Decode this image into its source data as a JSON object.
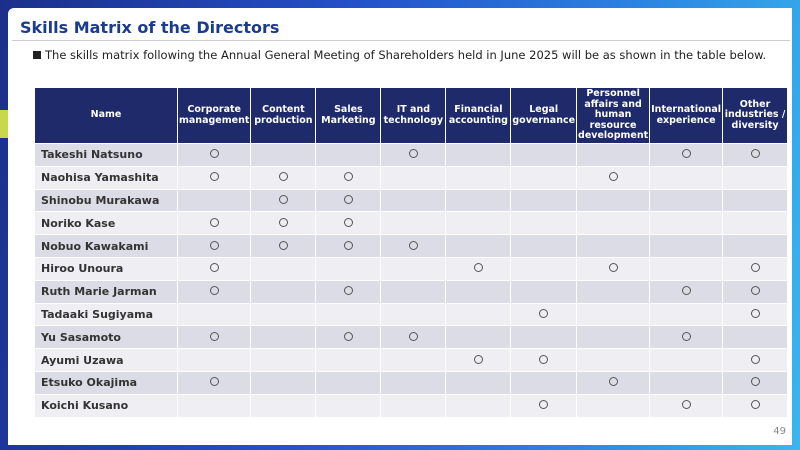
{
  "title": "Skills Matrix of the Directors",
  "subtitle": "The skills matrix following the Annual General Meeting of Shareholders held in June 2025 will be as shown in the table below.",
  "page_number": "49",
  "table": {
    "headers": [
      "Name",
      "Corporate management",
      "Content production",
      "Sales Marketing",
      "IT and technology",
      "Financial accounting",
      "Legal governance",
      "Personnel affairs and human resource development",
      "International experience",
      "Other industries / diversity"
    ],
    "rows": [
      {
        "name": "Takeshi Natsuno",
        "marks": [
          1,
          0,
          0,
          1,
          0,
          0,
          0,
          1,
          1
        ]
      },
      {
        "name": "Naohisa Yamashita",
        "marks": [
          1,
          1,
          1,
          0,
          0,
          0,
          1,
          0,
          0
        ]
      },
      {
        "name": "Shinobu Murakawa",
        "marks": [
          0,
          1,
          1,
          0,
          0,
          0,
          0,
          0,
          0
        ]
      },
      {
        "name": "Noriko Kase",
        "marks": [
          1,
          1,
          1,
          0,
          0,
          0,
          0,
          0,
          0
        ]
      },
      {
        "name": "Nobuo Kawakami",
        "marks": [
          1,
          1,
          1,
          1,
          0,
          0,
          0,
          0,
          0
        ]
      },
      {
        "name": "Hiroo Unoura",
        "marks": [
          1,
          0,
          0,
          0,
          1,
          0,
          1,
          0,
          1
        ]
      },
      {
        "name": "Ruth Marie Jarman",
        "marks": [
          1,
          0,
          1,
          0,
          0,
          0,
          0,
          1,
          1
        ]
      },
      {
        "name": "Tadaaki Sugiyama",
        "marks": [
          0,
          0,
          0,
          0,
          0,
          1,
          0,
          0,
          1
        ]
      },
      {
        "name": "Yu Sasamoto",
        "marks": [
          1,
          0,
          1,
          1,
          0,
          0,
          0,
          1,
          0
        ]
      },
      {
        "name": "Ayumi Uzawa",
        "marks": [
          0,
          0,
          0,
          0,
          1,
          1,
          0,
          0,
          1
        ]
      },
      {
        "name": "Etsuko Okajima",
        "marks": [
          1,
          0,
          0,
          0,
          0,
          0,
          1,
          0,
          1
        ]
      },
      {
        "name": "Koichi Kusano",
        "marks": [
          0,
          0,
          0,
          0,
          0,
          1,
          0,
          1,
          1
        ]
      }
    ],
    "mark_icon": "circle-icon"
  },
  "colors": {
    "title": "#1a3b8e",
    "header_bg": "#1f2a6b",
    "row_odd": "#dcdce6",
    "row_even": "#eeeef3",
    "frame_gradient": [
      "#1b2f8a",
      "#39b6ef"
    ]
  }
}
